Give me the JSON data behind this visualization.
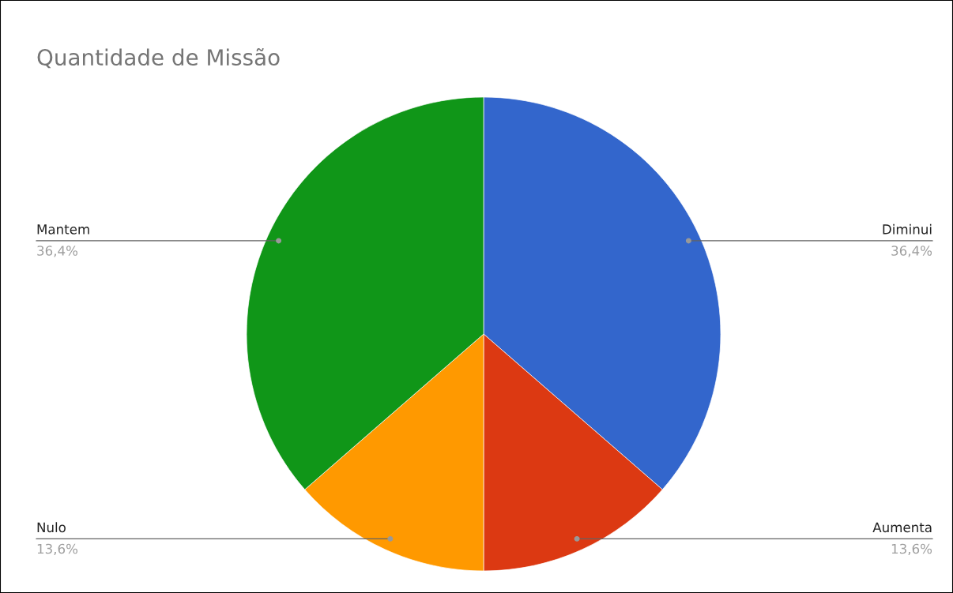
{
  "chart_data": {
    "type": "pie",
    "title": "Quantidade de Missão",
    "categories": [
      "Diminui",
      "Aumenta",
      "Nulo",
      "Mantem"
    ],
    "values": [
      36.4,
      13.6,
      13.6,
      36.4
    ],
    "value_labels": [
      "36,4%",
      "13,6%",
      "13,6%",
      "36,4%"
    ],
    "colors": [
      "#3366cc",
      "#dc3912",
      "#ff9900",
      "#109618"
    ]
  }
}
